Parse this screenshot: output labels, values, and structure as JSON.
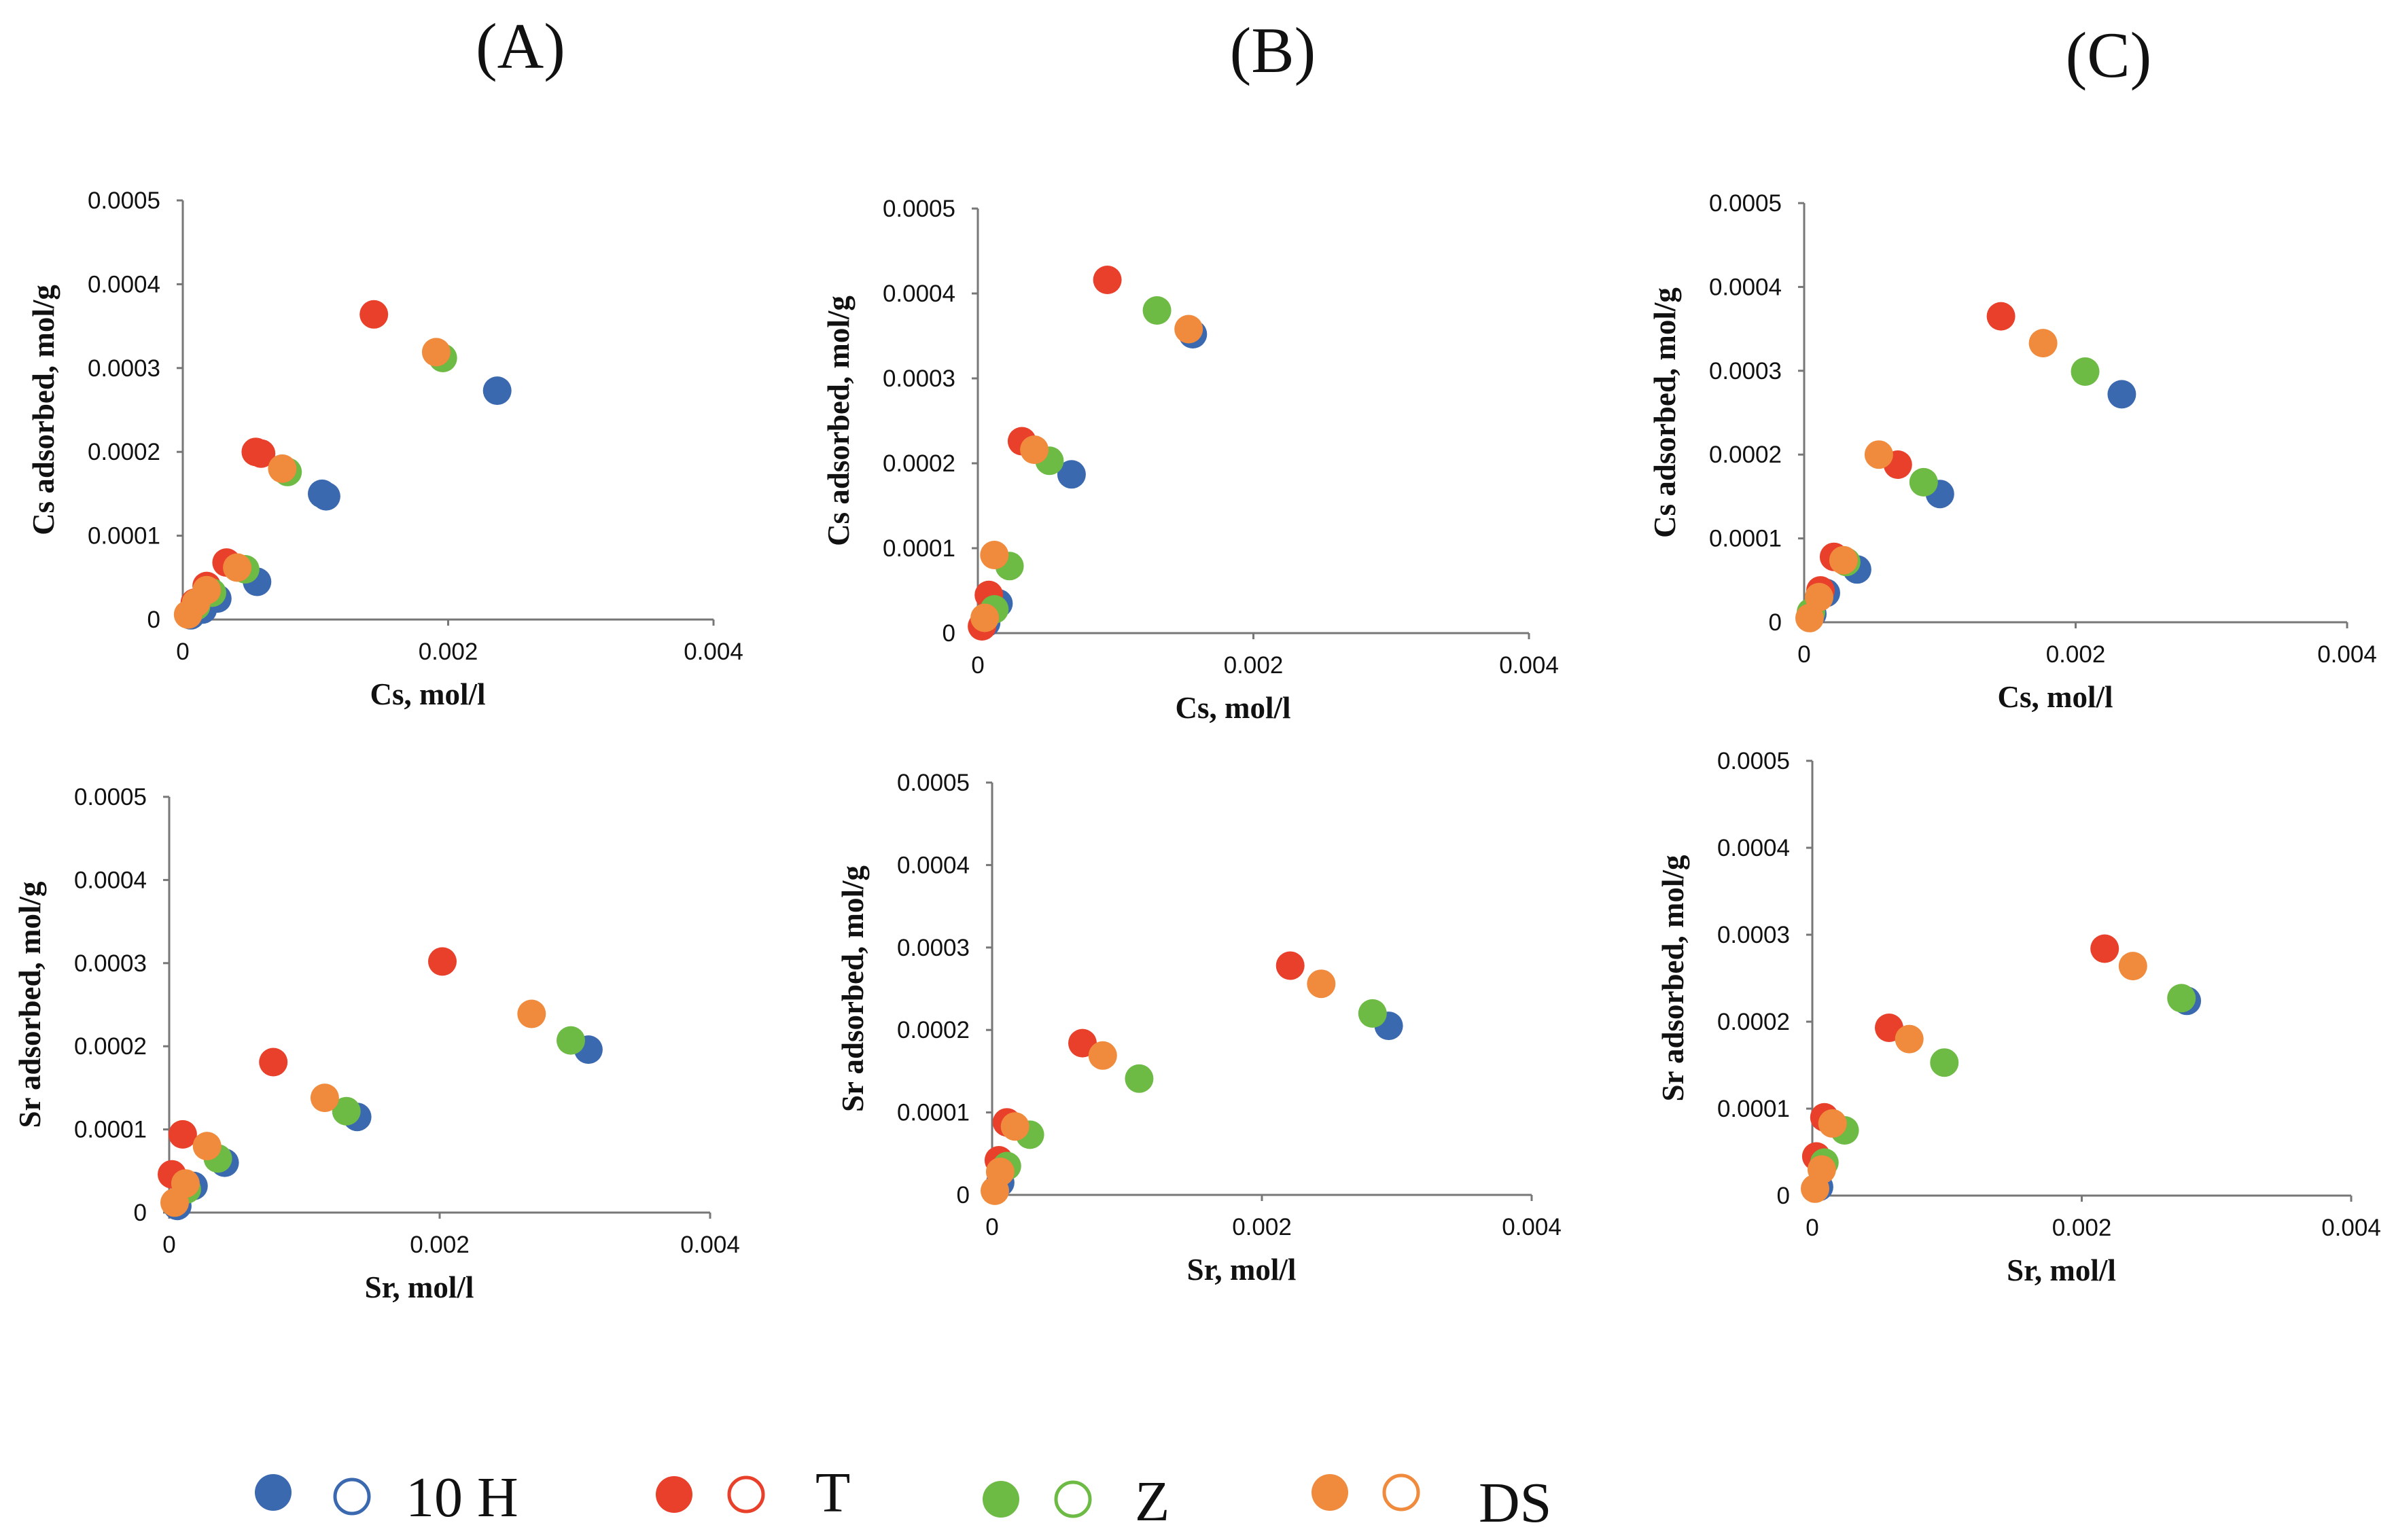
{
  "column_titles": [
    "(A)",
    "(B)",
    "(C)"
  ],
  "legend": {
    "items": [
      {
        "label": "10 H",
        "color": "#3b69b0"
      },
      {
        "label": "T",
        "color": "#e8402a"
      },
      {
        "label": "Z",
        "color": "#6dba45"
      },
      {
        "label": "DS",
        "color": "#f08a3c"
      }
    ]
  },
  "chart_data": [
    {
      "type": "scatter",
      "id": "A-Cs",
      "title": "",
      "xlabel": "Cs, mol/l",
      "ylabel": "Cs adsorbed, mol/g",
      "xlim": [
        0,
        0.004
      ],
      "ylim": [
        0,
        0.0005
      ],
      "xticks": [
        0,
        0.002,
        0.004
      ],
      "xtick_labels": [
        "0",
        "0.002",
        "0.004"
      ],
      "yticks": [
        0,
        0.0001,
        0.0002,
        0.0003,
        0.0004,
        0.0005
      ],
      "ytick_labels": [
        "0",
        "0.0001",
        "0.0002",
        "0.0003",
        "0.0004",
        "0.0005"
      ],
      "series": [
        {
          "name": "10 H",
          "color": "#3b69b0",
          "points": [
            [
              0.00237,
              0.000273
            ],
            [
              0.00108,
              0.000147
            ],
            [
              0.00105,
              0.00015
            ],
            [
              0.00056,
              4.5e-05
            ],
            [
              0.00026,
              2.5e-05
            ],
            [
              0.00015,
              1.2e-05
            ],
            [
              6e-05,
              5e-06
            ]
          ]
        },
        {
          "name": "T",
          "color": "#e8402a",
          "points": [
            [
              0.00144,
              0.000364
            ],
            [
              0.00055,
              0.0002
            ],
            [
              0.00059,
              0.000198
            ],
            [
              0.00033,
              6.8e-05
            ],
            [
              0.00018,
              4e-05
            ],
            [
              9e-05,
              2e-05
            ]
          ]
        },
        {
          "name": "Z",
          "color": "#6dba45",
          "points": [
            [
              0.00196,
              0.000312
            ],
            [
              0.00079,
              0.000176
            ],
            [
              0.00047,
              6e-05
            ],
            [
              0.00022,
              3.2e-05
            ],
            [
              0.0001,
              1.6e-05
            ]
          ]
        },
        {
          "name": "DS",
          "color": "#f08a3c",
          "points": [
            [
              0.00191,
              0.000319
            ],
            [
              0.00075,
              0.00018
            ],
            [
              0.00041,
              6.2e-05
            ],
            [
              0.00018,
              3.5e-05
            ],
            [
              0.0001,
              2e-05
            ],
            [
              4e-05,
              6e-06
            ]
          ]
        }
      ]
    },
    {
      "type": "scatter",
      "id": "B-Cs",
      "title": "",
      "xlabel": "Cs, mol/l",
      "ylabel": "Cs adsorbed, mol/g",
      "xlim": [
        0,
        0.004
      ],
      "ylim": [
        0,
        0.0005
      ],
      "xticks": [
        0,
        0.002,
        0.004
      ],
      "xtick_labels": [
        "0",
        "0.002",
        "0.004"
      ],
      "yticks": [
        0,
        0.0001,
        0.0002,
        0.0003,
        0.0004,
        0.0005
      ],
      "ytick_labels": [
        "0",
        "0.0001",
        "0.0002",
        "0.0003",
        "0.0004",
        "0.0005"
      ],
      "series": [
        {
          "name": "10 H",
          "color": "#3b69b0",
          "points": [
            [
              0.00156,
              0.000352
            ],
            [
              0.00068,
              0.000187
            ],
            [
              0.00015,
              3.5e-05
            ],
            [
              6e-05,
              1.2e-05
            ]
          ]
        },
        {
          "name": "T",
          "color": "#e8402a",
          "points": [
            [
              0.00094,
              0.000416
            ],
            [
              0.00032,
              0.000226
            ],
            [
              8e-05,
              4.5e-05
            ],
            [
              3e-05,
              8e-06
            ]
          ]
        },
        {
          "name": "Z",
          "color": "#6dba45",
          "points": [
            [
              0.0013,
              0.00038
            ],
            [
              0.00052,
              0.000203
            ],
            [
              0.00023,
              7.9e-05
            ],
            [
              0.00012,
              2.8e-05
            ]
          ]
        },
        {
          "name": "DS",
          "color": "#f08a3c",
          "points": [
            [
              0.00153,
              0.000358
            ],
            [
              0.00041,
              0.000216
            ],
            [
              0.00012,
              9.2e-05
            ],
            [
              5e-05,
              1.8e-05
            ]
          ]
        }
      ]
    },
    {
      "type": "scatter",
      "id": "C-Cs",
      "title": "",
      "xlabel": "Cs, mol/l",
      "ylabel": "Cs adsorbed, mol/g",
      "xlim": [
        0,
        0.004
      ],
      "ylim": [
        0,
        0.0005
      ],
      "xticks": [
        0,
        0.002,
        0.004
      ],
      "xtick_labels": [
        "0",
        "0.002",
        "0.004"
      ],
      "yticks": [
        0,
        0.0001,
        0.0002,
        0.0003,
        0.0004,
        0.0005
      ],
      "ytick_labels": [
        "0",
        "0.0001",
        "0.0002",
        "0.0003",
        "0.0004",
        "0.0005"
      ],
      "series": [
        {
          "name": "10 H",
          "color": "#3b69b0",
          "points": [
            [
              0.00234,
              0.000272
            ],
            [
              0.001,
              0.000153
            ],
            [
              0.00039,
              6.3e-05
            ],
            [
              0.00016,
              3.5e-05
            ],
            [
              6e-05,
              1e-05
            ]
          ]
        },
        {
          "name": "T",
          "color": "#e8402a",
          "points": [
            [
              0.00145,
              0.000365
            ],
            [
              0.00069,
              0.000188
            ],
            [
              0.00022,
              7.8e-05
            ],
            [
              0.00012,
              3.8e-05
            ]
          ]
        },
        {
          "name": "Z",
          "color": "#6dba45",
          "points": [
            [
              0.00207,
              0.000299
            ],
            [
              0.00088,
              0.000167
            ],
            [
              0.00031,
              7.2e-05
            ],
            [
              5e-05,
              1.2e-05
            ]
          ]
        },
        {
          "name": "DS",
          "color": "#f08a3c",
          "points": [
            [
              0.00176,
              0.000333
            ],
            [
              0.00055,
              0.0002
            ],
            [
              0.00029,
              7.4e-05
            ],
            [
              0.00011,
              3e-05
            ],
            [
              4e-05,
              5e-06
            ]
          ]
        }
      ]
    },
    {
      "type": "scatter",
      "id": "A-Sr",
      "title": "",
      "xlabel": "Sr, mol/l",
      "ylabel": "Sr adsorbed, mol/g",
      "xlim": [
        0,
        0.004
      ],
      "ylim": [
        0,
        0.0005
      ],
      "xticks": [
        0,
        0.002,
        0.004
      ],
      "xtick_labels": [
        "0",
        "0.002",
        "0.004"
      ],
      "yticks": [
        0,
        0.0001,
        0.0002,
        0.0003,
        0.0004,
        0.0005
      ],
      "ytick_labels": [
        "0",
        "0.0001",
        "0.0002",
        "0.0003",
        "0.0004",
        "0.0005"
      ],
      "series": [
        {
          "name": "10 H",
          "color": "#3b69b0",
          "points": [
            [
              0.0031,
              0.000196
            ],
            [
              0.00139,
              0.000115
            ],
            [
              0.00041,
              6e-05
            ],
            [
              0.00018,
              3.2e-05
            ],
            [
              6e-05,
              8e-06
            ]
          ]
        },
        {
          "name": "T",
          "color": "#e8402a",
          "points": [
            [
              0.00202,
              0.000302
            ],
            [
              0.00077,
              0.000181
            ],
            [
              0.0001,
              9.4e-05
            ],
            [
              2e-05,
              4.6e-05
            ]
          ]
        },
        {
          "name": "Z",
          "color": "#6dba45",
          "points": [
            [
              0.00297,
              0.000207
            ],
            [
              0.00131,
              0.000122
            ],
            [
              0.00036,
              6.5e-05
            ],
            [
              0.00013,
              2.8e-05
            ]
          ]
        },
        {
          "name": "DS",
          "color": "#f08a3c",
          "points": [
            [
              0.00268,
              0.000239
            ],
            [
              0.00115,
              0.000138
            ],
            [
              0.00028,
              8e-05
            ],
            [
              0.00012,
              3.5e-05
            ],
            [
              4e-05,
              1.2e-05
            ]
          ]
        }
      ]
    },
    {
      "type": "scatter",
      "id": "B-Sr",
      "title": "",
      "xlabel": "Sr, mol/l",
      "ylabel": "Sr adsorbed, mol/g",
      "xlim": [
        0,
        0.004
      ],
      "ylim": [
        0,
        0.0005
      ],
      "xticks": [
        0,
        0.002,
        0.004
      ],
      "xtick_labels": [
        "0",
        "0.002",
        "0.004"
      ],
      "yticks": [
        0,
        0.0001,
        0.0002,
        0.0003,
        0.0004,
        0.0005
      ],
      "ytick_labels": [
        "0",
        "0.0001",
        "0.0002",
        "0.0003",
        "0.0004",
        "0.0005"
      ],
      "series": [
        {
          "name": "10 H",
          "color": "#3b69b0",
          "points": [
            [
              0.00294,
              0.000205
            ],
            [
              6e-05,
              1.5e-05
            ]
          ]
        },
        {
          "name": "T",
          "color": "#e8402a",
          "points": [
            [
              0.00221,
              0.000278
            ],
            [
              0.00067,
              0.000184
            ],
            [
              0.00011,
              8.8e-05
            ],
            [
              5e-05,
              4.2e-05
            ]
          ]
        },
        {
          "name": "Z",
          "color": "#6dba45",
          "points": [
            [
              0.00282,
              0.00022
            ],
            [
              0.00109,
              0.000141
            ],
            [
              0.00028,
              7.3e-05
            ],
            [
              0.00011,
              3.5e-05
            ]
          ]
        },
        {
          "name": "DS",
          "color": "#f08a3c",
          "points": [
            [
              0.00244,
              0.000256
            ],
            [
              0.00082,
              0.000169
            ],
            [
              0.00017,
              8.3e-05
            ],
            [
              6e-05,
              2.8e-05
            ],
            [
              2e-05,
              5e-06
            ]
          ]
        }
      ]
    },
    {
      "type": "scatter",
      "id": "C-Sr",
      "title": "",
      "xlabel": "Sr, mol/l",
      "ylabel": "Sr adsorbed, mol/g",
      "xlim": [
        0,
        0.004
      ],
      "ylim": [
        0,
        0.0005
      ],
      "xticks": [
        0,
        0.002,
        0.004
      ],
      "xtick_labels": [
        "0",
        "0.002",
        "0.004"
      ],
      "yticks": [
        0,
        0.0001,
        0.0002,
        0.0003,
        0.0004,
        0.0005
      ],
      "ytick_labels": [
        "0",
        "0.0001",
        "0.0002",
        "0.0003",
        "0.0004",
        "0.0005"
      ],
      "series": [
        {
          "name": "10 H",
          "color": "#3b69b0",
          "points": [
            [
              0.00278,
              0.000224
            ],
            [
              5e-05,
              1e-05
            ]
          ]
        },
        {
          "name": "T",
          "color": "#e8402a",
          "points": [
            [
              0.00217,
              0.000284
            ],
            [
              0.00057,
              0.000193
            ],
            [
              9e-05,
              9e-05
            ],
            [
              3e-05,
              4.5e-05
            ]
          ]
        },
        {
          "name": "Z",
          "color": "#6dba45",
          "points": [
            [
              0.00274,
              0.000227
            ],
            [
              0.00098,
              0.000153
            ],
            [
              0.00024,
              7.5e-05
            ],
            [
              9e-05,
              3.8e-05
            ]
          ]
        },
        {
          "name": "DS",
          "color": "#f08a3c",
          "points": [
            [
              0.00238,
              0.000264
            ],
            [
              0.00072,
              0.00018
            ],
            [
              0.00015,
              8.3e-05
            ],
            [
              7e-05,
              3e-05
            ],
            [
              2e-05,
              8e-06
            ]
          ]
        }
      ]
    }
  ]
}
